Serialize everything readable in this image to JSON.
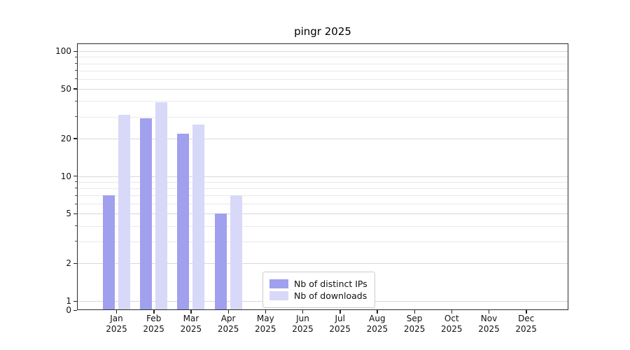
{
  "title": "pingr 2025",
  "chart_data": {
    "type": "bar",
    "title": "pingr 2025",
    "categories": [
      "Jan",
      "Feb",
      "Mar",
      "Apr",
      "May",
      "Jun",
      "Jul",
      "Aug",
      "Sep",
      "Oct",
      "Nov",
      "Dec"
    ],
    "x_tick_year": "2025",
    "series": [
      {
        "name": "Nb of distinct IPs",
        "color": "#a0a0ee",
        "values": [
          7,
          29,
          22,
          5,
          0,
          0,
          0,
          0,
          0,
          0,
          0,
          0
        ]
      },
      {
        "name": "Nb of downloads",
        "color": "#d8d8f8",
        "values": [
          31,
          39,
          26,
          7,
          0,
          0,
          0,
          0,
          0,
          0,
          0,
          0
        ]
      }
    ],
    "yscale": "symlog",
    "yticks": [
      0,
      1,
      2,
      5,
      10,
      20,
      50,
      100
    ],
    "minor_yticks": [
      3,
      4,
      6,
      7,
      8,
      9,
      30,
      40,
      60,
      70,
      80,
      90
    ],
    "ylim": [
      0,
      115
    ],
    "xlabel": "",
    "ylabel": "",
    "grid": true,
    "legend_position": "lower center"
  },
  "colors": {
    "grid_major": "#d8d8d8",
    "grid_minor": "#e9e9e9",
    "spine": "#2b2b2b",
    "background": "#ffffff"
  }
}
